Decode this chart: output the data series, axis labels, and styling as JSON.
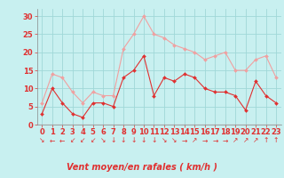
{
  "x": [
    0,
    1,
    2,
    3,
    4,
    5,
    6,
    7,
    8,
    9,
    10,
    11,
    12,
    13,
    14,
    15,
    16,
    17,
    18,
    19,
    20,
    21,
    22,
    23
  ],
  "vent_moyen": [
    3,
    10,
    6,
    3,
    2,
    6,
    6,
    5,
    13,
    15,
    19,
    8,
    13,
    12,
    14,
    13,
    10,
    9,
    9,
    8,
    4,
    12,
    8,
    6
  ],
  "en_rafales": [
    6,
    14,
    13,
    9,
    6,
    9,
    8,
    8,
    21,
    25,
    30,
    25,
    24,
    22,
    21,
    20,
    18,
    19,
    20,
    15,
    15,
    18,
    19,
    13
  ],
  "xlabel": "Vent moyen/en rafales ( km/h )",
  "ylabel_vals": [
    0,
    5,
    10,
    15,
    20,
    25,
    30
  ],
  "ylim": [
    0,
    32
  ],
  "xlim": [
    -0.5,
    23.5
  ],
  "bg_color": "#c8f0f0",
  "line_color_moyen": "#e03030",
  "line_color_rafales": "#f0a0a0",
  "grid_color": "#a0d8d8",
  "xlabel_color": "#e03030",
  "xlabel_fontsize": 7,
  "tick_fontsize": 6,
  "wind_dirs": [
    "↘",
    "←",
    "←",
    "↙",
    "↙",
    "↙",
    "↘",
    "↓",
    "↓",
    "↓",
    "↓",
    "↓",
    "↘",
    "↘",
    "→",
    "↗",
    "→",
    "→",
    "→",
    "↗",
    "↗",
    "↗",
    "↑",
    "↑"
  ]
}
